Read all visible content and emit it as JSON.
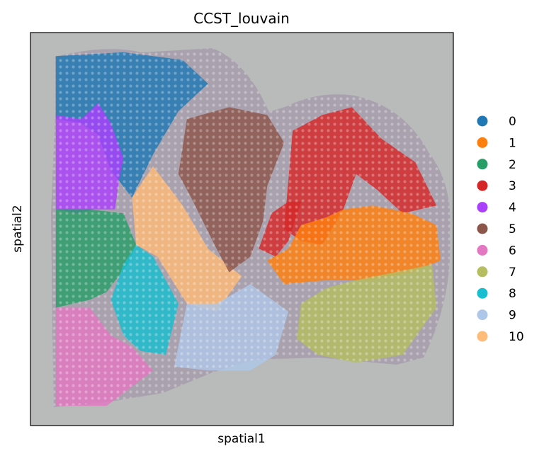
{
  "chart_data": {
    "type": "scatter",
    "title": "CCST_louvain",
    "xlabel": "spatial1",
    "ylabel": "spatial2",
    "grid": false,
    "axis_ticks": false,
    "legend_position": "right",
    "background": "H&E tissue image",
    "legend": [
      {
        "label": "0",
        "color": "#1f77b4"
      },
      {
        "label": "1",
        "color": "#ff7f0e"
      },
      {
        "label": "2",
        "color": "#279e68"
      },
      {
        "label": "3",
        "color": "#d62728"
      },
      {
        "label": "4",
        "color": "#aa40fc"
      },
      {
        "label": "5",
        "color": "#8c564b"
      },
      {
        "label": "6",
        "color": "#e377c2"
      },
      {
        "label": "7",
        "color": "#b5bd61"
      },
      {
        "label": "8",
        "color": "#17becf"
      },
      {
        "label": "9",
        "color": "#aec7e8"
      },
      {
        "label": "10",
        "color": "#ffbb78"
      }
    ],
    "regions": [
      {
        "cluster": "0",
        "points": [
          [
            0.06,
            0.94
          ],
          [
            0.22,
            0.95
          ],
          [
            0.36,
            0.93
          ],
          [
            0.42,
            0.87
          ],
          [
            0.35,
            0.8
          ],
          [
            0.29,
            0.69
          ],
          [
            0.24,
            0.58
          ],
          [
            0.19,
            0.65
          ],
          [
            0.16,
            0.74
          ],
          [
            0.12,
            0.77
          ],
          [
            0.06,
            0.78
          ]
        ]
      },
      {
        "cluster": "4",
        "points": [
          [
            0.06,
            0.79
          ],
          [
            0.12,
            0.78
          ],
          [
            0.16,
            0.82
          ],
          [
            0.19,
            0.77
          ],
          [
            0.22,
            0.68
          ],
          [
            0.21,
            0.63
          ],
          [
            0.2,
            0.55
          ],
          [
            0.15,
            0.55
          ],
          [
            0.11,
            0.54
          ],
          [
            0.06,
            0.55
          ]
        ]
      },
      {
        "cluster": "2",
        "points": [
          [
            0.06,
            0.55
          ],
          [
            0.14,
            0.55
          ],
          [
            0.22,
            0.54
          ],
          [
            0.25,
            0.46
          ],
          [
            0.23,
            0.41
          ],
          [
            0.18,
            0.34
          ],
          [
            0.14,
            0.32
          ],
          [
            0.06,
            0.3
          ]
        ]
      },
      {
        "cluster": "6",
        "points": [
          [
            0.06,
            0.3
          ],
          [
            0.14,
            0.3
          ],
          [
            0.19,
            0.23
          ],
          [
            0.24,
            0.2
          ],
          [
            0.29,
            0.14
          ],
          [
            0.18,
            0.05
          ],
          [
            0.06,
            0.05
          ]
        ]
      },
      {
        "cluster": "8",
        "points": [
          [
            0.22,
            0.41
          ],
          [
            0.25,
            0.46
          ],
          [
            0.29,
            0.43
          ],
          [
            0.35,
            0.31
          ],
          [
            0.32,
            0.18
          ],
          [
            0.26,
            0.19
          ],
          [
            0.22,
            0.23
          ],
          [
            0.19,
            0.32
          ]
        ]
      },
      {
        "cluster": "10",
        "points": [
          [
            0.24,
            0.58
          ],
          [
            0.29,
            0.66
          ],
          [
            0.36,
            0.56
          ],
          [
            0.42,
            0.45
          ],
          [
            0.5,
            0.38
          ],
          [
            0.44,
            0.29
          ],
          [
            0.37,
            0.31
          ],
          [
            0.3,
            0.43
          ],
          [
            0.25,
            0.46
          ]
        ]
      },
      {
        "cluster": "9",
        "points": [
          [
            0.37,
            0.31
          ],
          [
            0.44,
            0.31
          ],
          [
            0.52,
            0.36
          ],
          [
            0.61,
            0.29
          ],
          [
            0.58,
            0.18
          ],
          [
            0.52,
            0.14
          ],
          [
            0.42,
            0.14
          ],
          [
            0.34,
            0.15
          ]
        ]
      },
      {
        "cluster": "5",
        "points": [
          [
            0.37,
            0.78
          ],
          [
            0.47,
            0.81
          ],
          [
            0.56,
            0.79
          ],
          [
            0.6,
            0.72
          ],
          [
            0.56,
            0.61
          ],
          [
            0.55,
            0.52
          ],
          [
            0.52,
            0.43
          ],
          [
            0.47,
            0.39
          ],
          [
            0.44,
            0.45
          ],
          [
            0.38,
            0.58
          ],
          [
            0.35,
            0.64
          ]
        ]
      },
      {
        "cluster": "3",
        "points": [
          [
            0.62,
            0.75
          ],
          [
            0.69,
            0.79
          ],
          [
            0.76,
            0.81
          ],
          [
            0.83,
            0.73
          ],
          [
            0.91,
            0.67
          ],
          [
            0.96,
            0.56
          ],
          [
            0.88,
            0.54
          ],
          [
            0.82,
            0.6
          ],
          [
            0.77,
            0.64
          ],
          [
            0.74,
            0.55
          ],
          [
            0.69,
            0.46
          ],
          [
            0.64,
            0.47
          ],
          [
            0.6,
            0.5
          ]
        ]
      },
      {
        "cluster": "3",
        "points": [
          [
            0.54,
            0.45
          ],
          [
            0.57,
            0.54
          ],
          [
            0.61,
            0.57
          ],
          [
            0.64,
            0.57
          ],
          [
            0.61,
            0.47
          ],
          [
            0.58,
            0.43
          ]
        ]
      },
      {
        "cluster": "1",
        "points": [
          [
            0.56,
            0.42
          ],
          [
            0.61,
            0.45
          ],
          [
            0.64,
            0.51
          ],
          [
            0.7,
            0.53
          ],
          [
            0.74,
            0.55
          ],
          [
            0.81,
            0.56
          ],
          [
            0.9,
            0.54
          ],
          [
            0.96,
            0.51
          ],
          [
            0.97,
            0.42
          ],
          [
            0.9,
            0.39
          ],
          [
            0.8,
            0.37
          ],
          [
            0.7,
            0.37
          ],
          [
            0.6,
            0.36
          ]
        ]
      },
      {
        "cluster": "7",
        "points": [
          [
            0.64,
            0.31
          ],
          [
            0.7,
            0.35
          ],
          [
            0.77,
            0.37
          ],
          [
            0.86,
            0.39
          ],
          [
            0.95,
            0.41
          ],
          [
            0.96,
            0.3
          ],
          [
            0.88,
            0.18
          ],
          [
            0.77,
            0.16
          ],
          [
            0.68,
            0.18
          ],
          [
            0.63,
            0.22
          ]
        ]
      }
    ]
  }
}
